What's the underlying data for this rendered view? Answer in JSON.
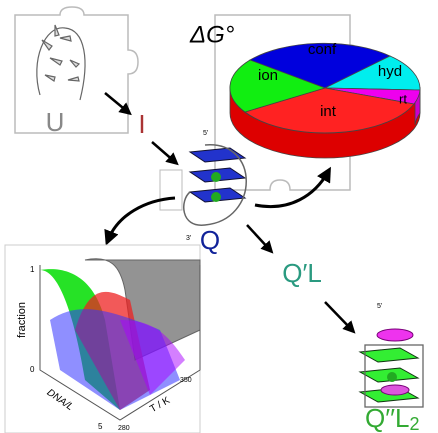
{
  "states": {
    "unfolded": "U",
    "intermediate": "I",
    "quadruplex": "Q",
    "ligand_complex": "Q′L",
    "ligand_complex_2": {
      "label": "Q′′L",
      "subscript": "2"
    }
  },
  "energy_panel": {
    "title": "ΔG°",
    "slices": [
      "conf",
      "hyd",
      "rt",
      "int",
      "ion"
    ]
  },
  "surface_plot": {
    "y_label": "fraction",
    "y_ticks": [
      "1",
      "0"
    ],
    "x_label": "DNA/L",
    "x_ticks": [
      "5"
    ],
    "z_label": "T / K",
    "z_ticks": [
      "350",
      "280"
    ]
  },
  "strand_ends": [
    "5'",
    "3'"
  ]
}
